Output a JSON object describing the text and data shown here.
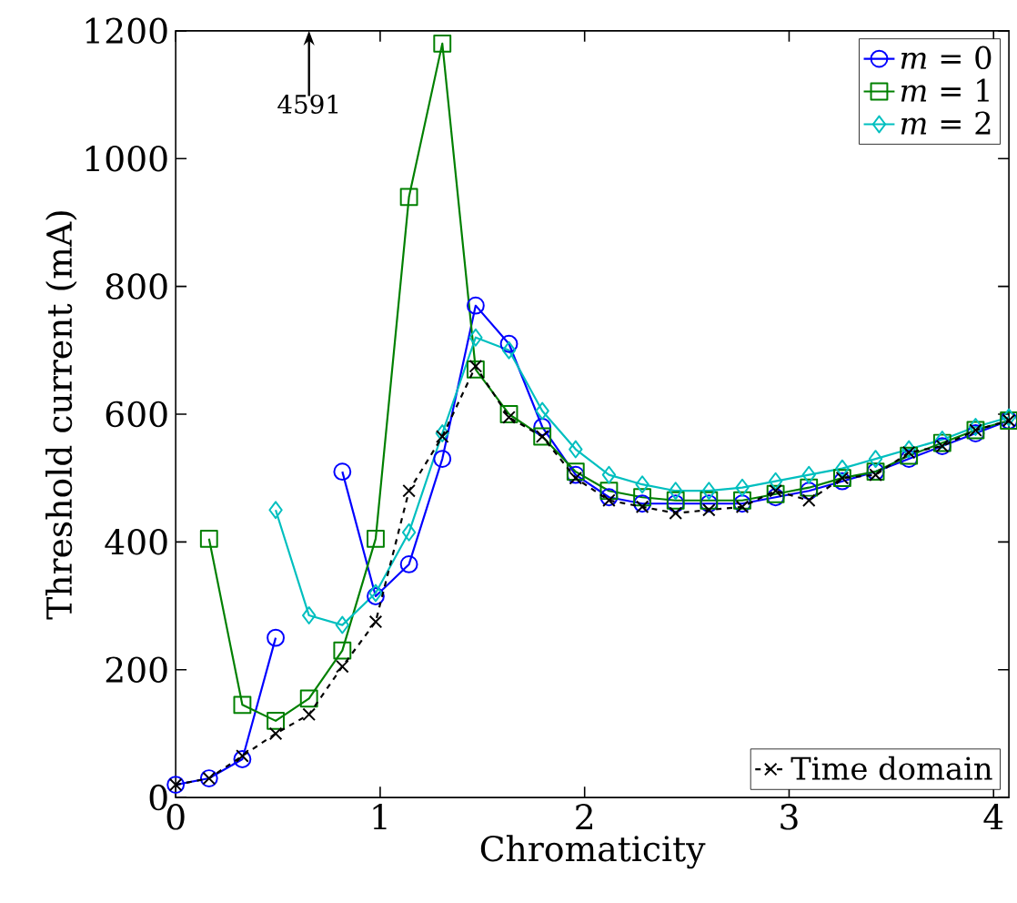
{
  "chart_data": {
    "type": "line",
    "xlabel": "Chromaticity",
    "ylabel": "Threshold current (mA)",
    "x": [
      0,
      0.163,
      0.326,
      0.489,
      0.652,
      0.815,
      0.978,
      1.141,
      1.304,
      1.467,
      1.63,
      1.793,
      1.956,
      2.119,
      2.282,
      2.445,
      2.608,
      2.771,
      2.934,
      3.097,
      3.26,
      3.423,
      3.586,
      3.749,
      3.912,
      4.075
    ],
    "series": [
      {
        "name": "*m* = 0",
        "color": "#0000ff",
        "marker": "circle",
        "line_style": "solid",
        "values": [
          20,
          30,
          60,
          250,
          null,
          510,
          315,
          365,
          530,
          770,
          710,
          580,
          505,
          470,
          460,
          460,
          460,
          460,
          470,
          480,
          495,
          510,
          530,
          550,
          570,
          590
        ]
      },
      {
        "name": "*m* = 1",
        "color": "#008000",
        "marker": "square",
        "line_style": "solid",
        "values": [
          null,
          405,
          145,
          120,
          155,
          230,
          405,
          940,
          1180,
          670,
          600,
          565,
          510,
          480,
          470,
          465,
          465,
          465,
          475,
          485,
          500,
          510,
          535,
          555,
          575,
          590
        ]
      },
      {
        "name": "*m* = 2",
        "color": "#00bfbf",
        "marker": "diamond",
        "line_style": "solid",
        "values": [
          null,
          null,
          null,
          450,
          285,
          270,
          320,
          415,
          570,
          720,
          700,
          605,
          545,
          505,
          490,
          480,
          480,
          485,
          495,
          505,
          515,
          530,
          545,
          560,
          580,
          595
        ]
      },
      {
        "name": "Time domain",
        "color": "#000000",
        "marker": "cross",
        "line_style": "dashed",
        "values": [
          20,
          30,
          65,
          100,
          130,
          205,
          275,
          480,
          565,
          675,
          595,
          565,
          500,
          465,
          455,
          445,
          450,
          455,
          480,
          465,
          500,
          505,
          540,
          550,
          575,
          590
        ]
      }
    ],
    "annotations": [
      "4591"
    ],
    "xlim": [
      0,
      4.075
    ],
    "ylim": [
      0,
      1200
    ],
    "xticks": [
      0,
      1,
      2,
      3,
      4
    ],
    "yticks": [
      0,
      200,
      400,
      600,
      800,
      1000,
      1200
    ],
    "legend": "top right"
  }
}
